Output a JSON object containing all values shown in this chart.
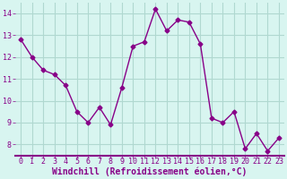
{
  "x": [
    0,
    1,
    2,
    3,
    4,
    5,
    6,
    7,
    8,
    9,
    10,
    11,
    12,
    13,
    14,
    15,
    16,
    17,
    18,
    19,
    20,
    21,
    22,
    23
  ],
  "y": [
    12.8,
    12.0,
    11.4,
    11.2,
    10.7,
    9.5,
    9.0,
    9.7,
    8.9,
    10.6,
    12.5,
    12.7,
    14.2,
    13.2,
    13.7,
    13.6,
    12.6,
    9.2,
    9.0,
    9.5,
    7.8,
    8.5,
    7.7,
    8.3
  ],
  "line_color": "#880088",
  "marker": "D",
  "marker_size": 2.5,
  "bg_color": "#d8f5f0",
  "grid_color": "#b0d8d0",
  "xlabel": "Windchill (Refroidissement éolien,°C)",
  "xlabel_color": "#880088",
  "xlabel_fontsize": 7,
  "tick_color": "#880088",
  "tick_fontsize": 6,
  "xlim": [
    -0.5,
    23.5
  ],
  "ylim": [
    7.5,
    14.5
  ],
  "yticks": [
    8,
    9,
    10,
    11,
    12,
    13,
    14
  ],
  "xticks": [
    0,
    1,
    2,
    3,
    4,
    5,
    6,
    7,
    8,
    9,
    10,
    11,
    12,
    13,
    14,
    15,
    16,
    17,
    18,
    19,
    20,
    21,
    22,
    23
  ],
  "spine_color": "#880088",
  "bottom_bar_color": "#880088"
}
